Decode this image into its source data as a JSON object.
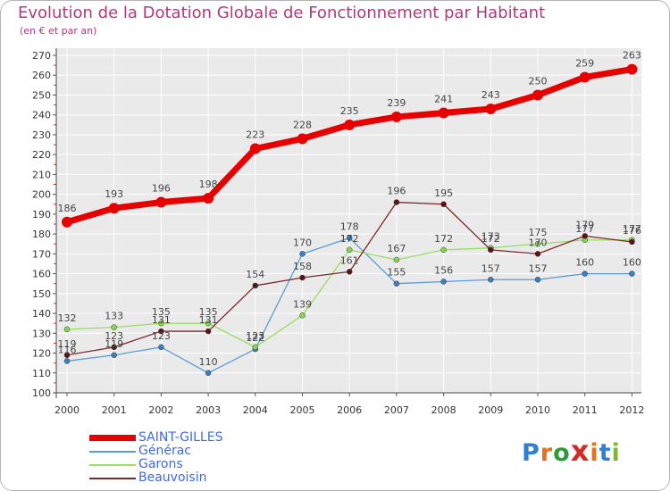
{
  "header": {
    "title": "Evolution de la Dotation Globale de Fonctionnement par Habitant",
    "subtitle": "(en € et par an)"
  },
  "logo": {
    "text": "Proxiti",
    "letters": [
      "P",
      "r",
      "o",
      "x",
      "i",
      "t",
      "i"
    ],
    "colors": [
      "#2f80d0",
      "#e8701a",
      "#2e9a3a",
      "#d42a2a",
      "#e8701a",
      "#2f80d0",
      "#7fb82a"
    ]
  },
  "chart_data": {
    "type": "line",
    "title": "Evolution de la Dotation Globale de Fonctionnement par Habitant",
    "subtitle": "(en € et par an)",
    "xlabel": "",
    "ylabel": "",
    "x": [
      "2000",
      "2001",
      "2002",
      "2003",
      "2004",
      "2005",
      "2006",
      "2007",
      "2008",
      "2009",
      "2010",
      "2011",
      "2012"
    ],
    "ylim": [
      100,
      270
    ],
    "yticks": [
      "100",
      "110",
      "120",
      "130",
      "140",
      "150",
      "160",
      "170",
      "180",
      "190",
      "200",
      "210",
      "220",
      "230",
      "240",
      "250",
      "260",
      "270"
    ],
    "grid": true,
    "legend_position": "bottom-left",
    "series": [
      {
        "name": "SAINT-GILLES",
        "color": "#e60000",
        "emphasis": "thick",
        "values": [
          186,
          193,
          196,
          198,
          223,
          228,
          235,
          239,
          241,
          243,
          250,
          259,
          263
        ],
        "labels": [
          "186",
          "193",
          "196",
          "198",
          "223",
          "228",
          "235",
          "239",
          "241",
          "243",
          "250",
          "259",
          "263"
        ]
      },
      {
        "name": "Générac",
        "color": "#5b9bd5",
        "marker": "#3a7fc4",
        "emphasis": "normal",
        "values": [
          116,
          119,
          123,
          110,
          122,
          170,
          178,
          155,
          156,
          157,
          157,
          160,
          160
        ],
        "labels": [
          "116",
          "119",
          "123",
          "110",
          "122",
          "170",
          "178",
          "155",
          "156",
          "157",
          "157",
          "160",
          "160"
        ]
      },
      {
        "name": "Garons",
        "color": "#99dd66",
        "marker": "#88d455",
        "emphasis": "normal",
        "values": [
          132,
          133,
          135,
          135,
          123,
          139,
          172,
          167,
          172,
          173,
          175,
          177,
          177
        ],
        "labels": [
          "132",
          "133",
          "135",
          "135",
          "123",
          "139",
          "172",
          "167",
          "172",
          "173",
          "175",
          "177",
          "177"
        ]
      },
      {
        "name": "Beauvoisin",
        "color": "#7a2a2a",
        "marker": "#5a1515",
        "emphasis": "normal",
        "values": [
          119,
          123,
          131,
          131,
          154,
          158,
          161,
          196,
          195,
          172,
          170,
          179,
          176
        ],
        "labels": [
          "119",
          "123",
          "131",
          "131",
          "154",
          "158",
          "161",
          "196",
          "195",
          "172",
          "170",
          "179",
          "176"
        ]
      }
    ]
  }
}
